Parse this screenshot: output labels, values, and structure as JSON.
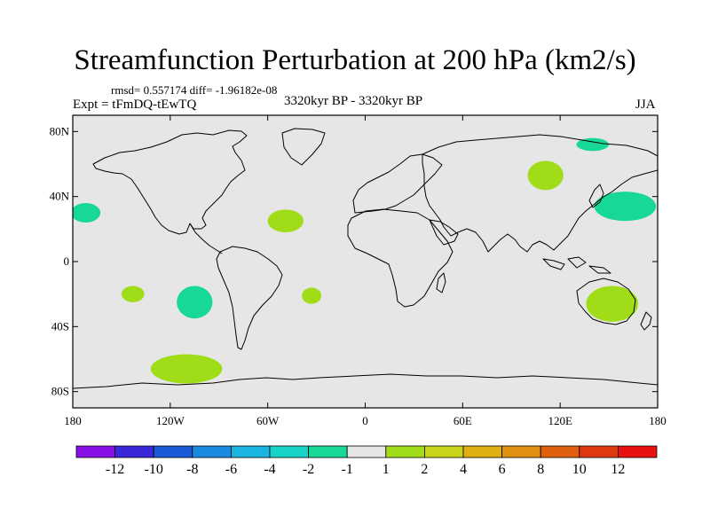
{
  "figure": {
    "title": "Streamfunction Perturbation at 200 hPa (km2/s)",
    "stats_line": "rmsd= 0.557174 diff= -1.96182e-08",
    "left_label": "Expt = tFmDQ-tEwTQ",
    "center_label": "3320kyr BP - 3320kyr BP",
    "right_label": "JJA"
  },
  "chart_data": {
    "type": "heatmap",
    "projection": "cylindrical-equidistant",
    "title": "Streamfunction Perturbation at 200 hPa (km2/s)",
    "subtitle": "3320kyr BP - 3320kyr BP",
    "season": "JJA",
    "units": "km2/s",
    "xlim": [
      -180,
      180
    ],
    "ylim": [
      -90,
      90
    ],
    "x_ticks": [
      {
        "value": -180,
        "label": "180"
      },
      {
        "value": -120,
        "label": "120W"
      },
      {
        "value": -60,
        "label": "60W"
      },
      {
        "value": 0,
        "label": "0"
      },
      {
        "value": 60,
        "label": "60E"
      },
      {
        "value": 120,
        "label": "120E"
      },
      {
        "value": 180,
        "label": "180"
      }
    ],
    "y_ticks": [
      {
        "value": 80,
        "label": "80N"
      },
      {
        "value": 40,
        "label": "40N"
      },
      {
        "value": 0,
        "label": "0"
      },
      {
        "value": -40,
        "label": "40S"
      },
      {
        "value": -80,
        "label": "80S"
      }
    ],
    "colorbar": {
      "labels": [
        "-12",
        "-10",
        "-8",
        "-6",
        "-4",
        "-2",
        "-1",
        "1",
        "2",
        "4",
        "6",
        "8",
        "10",
        "12"
      ],
      "colors": [
        "#8a10e8",
        "#3a28d8",
        "#1a5ad8",
        "#1a8ae0",
        "#1ab4e0",
        "#18d4c8",
        "#18d898",
        "#e6e6e6",
        "#a0dc18",
        "#c8d418",
        "#e0b010",
        "#e09010",
        "#e06010",
        "#e03810",
        "#e81010"
      ]
    },
    "features": [
      {
        "name": "positive-anomaly-n-atlantic",
        "sign": "positive",
        "category": "1 to 2",
        "lon": -49,
        "lat": 25,
        "rx_deg": 11,
        "ry_deg": 7
      },
      {
        "name": "positive-anomaly-siberia",
        "sign": "positive",
        "category": "1 to 2",
        "lon": 111,
        "lat": 53,
        "rx_deg": 11,
        "ry_deg": 9
      },
      {
        "name": "positive-anomaly-australia",
        "sign": "positive",
        "category": "1 to 2",
        "lon": 152,
        "lat": -26,
        "rx_deg": 16,
        "ry_deg": 11
      },
      {
        "name": "positive-anomaly-s-pacific",
        "sign": "positive",
        "category": "1 to 2",
        "lon": -143,
        "lat": -20,
        "rx_deg": 7,
        "ry_deg": 5
      },
      {
        "name": "positive-anomaly-s-atlantic",
        "sign": "positive",
        "category": "1 to 2",
        "lon": -33,
        "lat": -21,
        "rx_deg": 6,
        "ry_deg": 5
      },
      {
        "name": "positive-anomaly-southern-ocean",
        "sign": "positive",
        "category": "1 to 2",
        "lon": -110,
        "lat": -66,
        "rx_deg": 22,
        "ry_deg": 9
      },
      {
        "name": "negative-anomaly-w-pacific",
        "sign": "negative",
        "category": "-1 to -2",
        "lon": 160,
        "lat": 34,
        "rx_deg": 19,
        "ry_deg": 9
      },
      {
        "name": "negative-anomaly-arctic",
        "sign": "negative",
        "category": "-1 to -2",
        "lon": 140,
        "lat": 72,
        "rx_deg": 10,
        "ry_deg": 4
      },
      {
        "name": "negative-anomaly-ne-pacific",
        "sign": "negative",
        "category": "-1 to -2",
        "lon": -172,
        "lat": 30,
        "rx_deg": 9,
        "ry_deg": 6
      },
      {
        "name": "negative-anomaly-se-pacific",
        "sign": "negative",
        "category": "-1 to -2",
        "lon": -105,
        "lat": -25,
        "rx_deg": 11,
        "ry_deg": 10
      }
    ]
  }
}
